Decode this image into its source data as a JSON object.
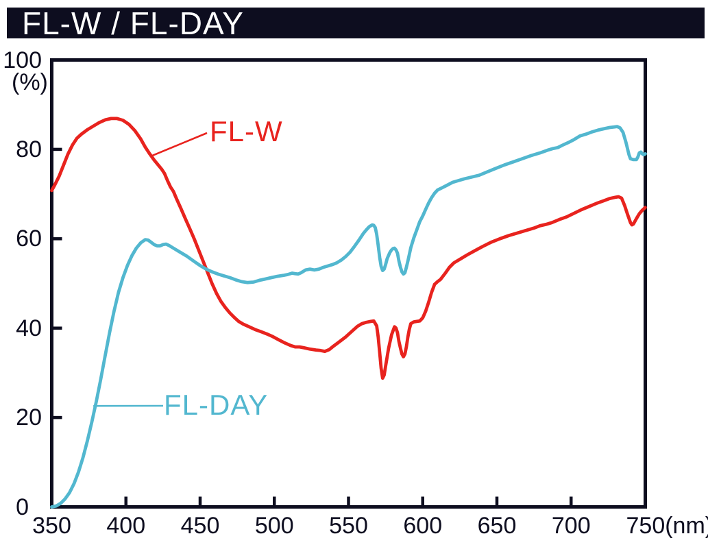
{
  "title_bar": {
    "text": "FL-W / FL-DAY"
  },
  "colors": {
    "ink": "#0d0d1f",
    "background": "#ffffff",
    "title_text": "#ffffff",
    "flw_red": "#e8231e",
    "flday_cyan": "#52b7cf"
  },
  "chart_data": {
    "type": "line",
    "title": "FL-W / FL-DAY",
    "xlabel": "(nm)",
    "ylabel": "(%)",
    "xlim": [
      350,
      750
    ],
    "ylim": [
      0,
      100
    ],
    "grid": false,
    "legend_position": "inline-annotations",
    "x_tick_values": [
      350,
      400,
      450,
      500,
      550,
      600,
      650,
      700,
      750
    ],
    "x_tick_labels": [
      "350",
      "400",
      "450",
      "500",
      "550",
      "600",
      "650",
      "700",
      "750(nm)"
    ],
    "y_tick_values": [
      0,
      20,
      40,
      60,
      80,
      100
    ],
    "y_tick_labels": [
      "0",
      "20",
      "40",
      "60",
      "80",
      "100"
    ],
    "y_axis_unit": "(%)",
    "annotations": [
      {
        "text": "FL-W",
        "color": "#e8231e",
        "attach_nm": 417,
        "attach_pct": 78.5
      },
      {
        "text": "FL-DAY",
        "color": "#52b7cf",
        "attach_nm": 378,
        "attach_pct": 22.6
      }
    ],
    "series": [
      {
        "name": "FL-W",
        "color": "#e8231e",
        "points": [
          [
            350,
            70.8
          ],
          [
            352,
            72
          ],
          [
            355,
            74
          ],
          [
            358,
            76.5
          ],
          [
            361,
            79
          ],
          [
            364,
            81
          ],
          [
            367,
            82.5
          ],
          [
            370,
            83.4
          ],
          [
            374,
            84.4
          ],
          [
            378,
            85.2
          ],
          [
            382,
            86
          ],
          [
            386,
            86.6
          ],
          [
            390,
            86.9
          ],
          [
            394,
            86.9
          ],
          [
            398,
            86.5
          ],
          [
            402,
            85.6
          ],
          [
            406,
            84.2
          ],
          [
            410,
            82.3
          ],
          [
            413,
            80.5
          ],
          [
            416,
            79
          ],
          [
            419,
            77.6
          ],
          [
            422,
            76.4
          ],
          [
            424,
            75.6
          ],
          [
            426,
            74.6
          ],
          [
            428,
            73
          ],
          [
            430,
            71.6
          ],
          [
            432,
            70.6
          ],
          [
            434,
            69
          ],
          [
            437,
            66.8
          ],
          [
            440,
            64.5
          ],
          [
            443,
            62.3
          ],
          [
            446,
            60
          ],
          [
            449,
            57.5
          ],
          [
            452,
            55
          ],
          [
            455,
            52.5
          ],
          [
            458,
            50
          ],
          [
            461,
            47.8
          ],
          [
            464,
            46
          ],
          [
            467,
            44.6
          ],
          [
            470,
            43.4
          ],
          [
            473,
            42.4
          ],
          [
            476,
            41.5
          ],
          [
            479,
            40.9
          ],
          [
            483,
            40.3
          ],
          [
            487,
            39.7
          ],
          [
            491,
            39.2
          ],
          [
            495,
            38.7
          ],
          [
            499,
            38.1
          ],
          [
            503,
            37.4
          ],
          [
            507,
            36.7
          ],
          [
            511,
            36.1
          ],
          [
            514,
            35.8
          ],
          [
            517,
            35.8
          ],
          [
            520,
            35.6
          ],
          [
            524,
            35.3
          ],
          [
            528,
            35.1
          ],
          [
            531,
            35
          ],
          [
            534,
            34.8
          ],
          [
            537,
            35.2
          ],
          [
            540,
            36
          ],
          [
            544,
            37
          ],
          [
            548,
            38
          ],
          [
            552,
            39.2
          ],
          [
            556,
            40.4
          ],
          [
            559,
            41
          ],
          [
            562,
            41.3
          ],
          [
            565,
            41.5
          ],
          [
            567,
            41.6
          ],
          [
            569,
            40.5
          ],
          [
            570,
            38
          ],
          [
            571,
            34.5
          ],
          [
            572,
            31
          ],
          [
            573,
            28.8
          ],
          [
            574,
            29.5
          ],
          [
            575,
            31.5
          ],
          [
            577,
            35.5
          ],
          [
            579,
            38.5
          ],
          [
            581,
            40.3
          ],
          [
            582,
            40
          ],
          [
            583,
            39
          ],
          [
            584,
            37
          ],
          [
            585,
            35.5
          ],
          [
            586,
            34.2
          ],
          [
            587,
            33.6
          ],
          [
            588,
            34.2
          ],
          [
            589,
            35.8
          ],
          [
            590,
            38
          ],
          [
            591,
            39.8
          ],
          [
            592,
            41
          ],
          [
            594,
            41.4
          ],
          [
            596,
            41.5
          ],
          [
            598,
            41.6
          ],
          [
            600,
            42.3
          ],
          [
            602,
            43.8
          ],
          [
            604,
            45.8
          ],
          [
            606,
            48
          ],
          [
            608,
            49.8
          ],
          [
            610,
            50.4
          ],
          [
            612,
            50.9
          ],
          [
            615,
            52.2
          ],
          [
            618,
            53.6
          ],
          [
            621,
            54.6
          ],
          [
            625,
            55.4
          ],
          [
            630,
            56.4
          ],
          [
            635,
            57.3
          ],
          [
            640,
            58.2
          ],
          [
            646,
            59.2
          ],
          [
            652,
            60
          ],
          [
            658,
            60.7
          ],
          [
            664,
            61.3
          ],
          [
            670,
            61.9
          ],
          [
            675,
            62.4
          ],
          [
            679,
            62.9
          ],
          [
            683,
            63.2
          ],
          [
            687,
            63.6
          ],
          [
            692,
            64.3
          ],
          [
            697,
            64.9
          ],
          [
            702,
            65.7
          ],
          [
            707,
            66.5
          ],
          [
            712,
            67.2
          ],
          [
            717,
            67.9
          ],
          [
            722,
            68.5
          ],
          [
            726,
            69
          ],
          [
            730,
            69.3
          ],
          [
            732,
            69.4
          ],
          [
            734,
            69.1
          ],
          [
            736,
            67.5
          ],
          [
            738,
            65.5
          ],
          [
            740,
            63.6
          ],
          [
            741,
            63.1
          ],
          [
            742,
            63.3
          ],
          [
            744,
            64.5
          ],
          [
            746,
            65.6
          ],
          [
            748,
            66.4
          ],
          [
            750,
            67
          ]
        ]
      },
      {
        "name": "FL-DAY",
        "color": "#52b7cf",
        "points": [
          [
            350,
            0
          ],
          [
            353,
            0.2
          ],
          [
            356,
            0.8
          ],
          [
            359,
            1.8
          ],
          [
            362,
            3.2
          ],
          [
            365,
            5.2
          ],
          [
            368,
            7.8
          ],
          [
            371,
            11
          ],
          [
            374,
            14.8
          ],
          [
            377,
            19
          ],
          [
            380,
            23.5
          ],
          [
            383,
            28.5
          ],
          [
            386,
            33.8
          ],
          [
            389,
            39
          ],
          [
            392,
            43.8
          ],
          [
            395,
            48
          ],
          [
            398,
            51.3
          ],
          [
            401,
            54
          ],
          [
            404,
            56.2
          ],
          [
            407,
            57.9
          ],
          [
            410,
            59.1
          ],
          [
            413,
            59.8
          ],
          [
            415,
            59.7
          ],
          [
            417,
            59.2
          ],
          [
            419,
            58.7
          ],
          [
            421,
            58.4
          ],
          [
            423,
            58.4
          ],
          [
            425,
            58.7
          ],
          [
            427,
            58.8
          ],
          [
            429,
            58.5
          ],
          [
            432,
            57.9
          ],
          [
            435,
            57.3
          ],
          [
            438,
            56.7
          ],
          [
            441,
            56.1
          ],
          [
            444,
            55.4
          ],
          [
            447,
            54.7
          ],
          [
            450,
            54
          ],
          [
            454,
            53.2
          ],
          [
            458,
            52.6
          ],
          [
            462,
            52.1
          ],
          [
            466,
            51.7
          ],
          [
            470,
            51.3
          ],
          [
            474,
            50.8
          ],
          [
            478,
            50.4
          ],
          [
            482,
            50.2
          ],
          [
            486,
            50.3
          ],
          [
            490,
            50.7
          ],
          [
            494,
            51
          ],
          [
            498,
            51.3
          ],
          [
            502,
            51.6
          ],
          [
            506,
            51.8
          ],
          [
            509,
            52
          ],
          [
            512,
            52.3
          ],
          [
            514,
            52.2
          ],
          [
            516,
            52.1
          ],
          [
            518,
            52.4
          ],
          [
            521,
            53
          ],
          [
            524,
            53.2
          ],
          [
            527,
            53
          ],
          [
            530,
            53.2
          ],
          [
            533,
            53.6
          ],
          [
            536,
            53.9
          ],
          [
            539,
            54.2
          ],
          [
            542,
            54.6
          ],
          [
            545,
            55.2
          ],
          [
            548,
            56
          ],
          [
            551,
            57
          ],
          [
            554,
            58.3
          ],
          [
            557,
            59.7
          ],
          [
            560,
            61.2
          ],
          [
            562,
            62
          ],
          [
            564,
            62.7
          ],
          [
            566,
            63.1
          ],
          [
            567,
            63
          ],
          [
            568,
            62.5
          ],
          [
            569,
            61
          ],
          [
            570,
            58.5
          ],
          [
            571,
            55.8
          ],
          [
            572,
            53.8
          ],
          [
            573,
            52.9
          ],
          [
            574,
            53.2
          ],
          [
            575,
            54.2
          ],
          [
            576,
            55.5
          ],
          [
            577,
            56.3
          ],
          [
            578,
            57
          ],
          [
            579,
            57.5
          ],
          [
            580,
            57.8
          ],
          [
            581,
            57.9
          ],
          [
            582,
            57.5
          ],
          [
            583,
            56.8
          ],
          [
            584,
            55
          ],
          [
            585,
            53.6
          ],
          [
            586,
            52.6
          ],
          [
            587,
            52.1
          ],
          [
            588,
            52.4
          ],
          [
            589,
            53.6
          ],
          [
            590,
            55
          ],
          [
            592,
            58
          ],
          [
            594,
            60.2
          ],
          [
            596,
            62
          ],
          [
            598,
            63.8
          ],
          [
            600,
            65.1
          ],
          [
            602,
            66.6
          ],
          [
            604,
            68
          ],
          [
            606,
            69.2
          ],
          [
            608,
            70.2
          ],
          [
            610,
            70.9
          ],
          [
            613,
            71.4
          ],
          [
            616,
            71.9
          ],
          [
            620,
            72.6
          ],
          [
            624,
            73
          ],
          [
            628,
            73.4
          ],
          [
            633,
            73.8
          ],
          [
            638,
            74.2
          ],
          [
            643,
            74.9
          ],
          [
            649,
            75.7
          ],
          [
            655,
            76.5
          ],
          [
            661,
            77.2
          ],
          [
            667,
            77.9
          ],
          [
            673,
            78.6
          ],
          [
            679,
            79.2
          ],
          [
            684,
            79.8
          ],
          [
            688,
            80.2
          ],
          [
            691,
            80.4
          ],
          [
            694,
            80.9
          ],
          [
            698,
            81.5
          ],
          [
            702,
            82.2
          ],
          [
            706,
            83
          ],
          [
            710,
            83.4
          ],
          [
            714,
            83.9
          ],
          [
            718,
            84.3
          ],
          [
            722,
            84.6
          ],
          [
            726,
            84.9
          ],
          [
            729,
            85
          ],
          [
            731,
            85.1
          ],
          [
            733,
            84.8
          ],
          [
            735,
            83.8
          ],
          [
            737,
            81.5
          ],
          [
            739,
            78.8
          ],
          [
            740,
            77.9
          ],
          [
            742,
            77.7
          ],
          [
            744,
            77.7
          ],
          [
            745,
            78.3
          ],
          [
            746,
            79.2
          ],
          [
            747,
            79.4
          ],
          [
            748,
            79
          ],
          [
            749,
            78.8
          ],
          [
            750,
            79
          ]
        ]
      }
    ]
  }
}
